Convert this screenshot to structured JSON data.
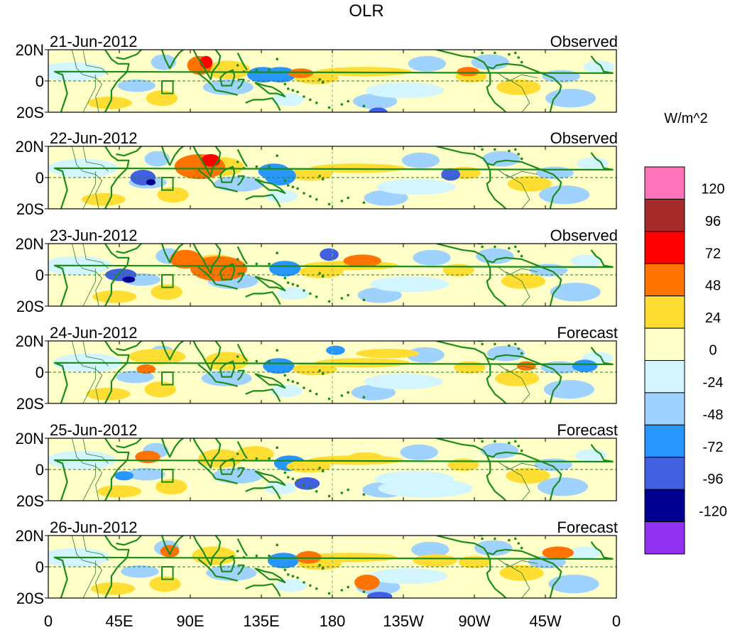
{
  "figure": {
    "title": "OLR",
    "units": "W/m^2"
  },
  "panels": [
    {
      "date": "21-Jun-2012",
      "type": "Observed"
    },
    {
      "date": "22-Jun-2012",
      "type": "Observed"
    },
    {
      "date": "23-Jun-2012",
      "type": "Observed"
    },
    {
      "date": "24-Jun-2012",
      "type": "Forecast"
    },
    {
      "date": "25-Jun-2012",
      "type": "Forecast"
    },
    {
      "date": "26-Jun-2012",
      "type": "Forecast"
    }
  ],
  "lat_ticks": [
    "20N",
    "0",
    "20S"
  ],
  "lon_ticks": [
    "0",
    "45E",
    "90E",
    "135E",
    "180",
    "135W",
    "90W",
    "45W",
    "0"
  ],
  "colorbar": {
    "labels": [
      "120",
      "96",
      "72",
      "48",
      "24",
      "0",
      "-24",
      "-48",
      "-72",
      "-96",
      "-120"
    ],
    "colors": [
      "#ff73b9",
      "#a52a2a",
      "#ff0000",
      "#ff7300",
      "#ffdd33",
      "#ffffc8",
      "#d2f5ff",
      "#a0d2ff",
      "#2896ff",
      "#4060e0",
      "#000090",
      "#9030f0"
    ]
  },
  "map_colors": {
    "coast": "#1a8c1a",
    "border": "#2a7a2a",
    "equator_line": "#2a7a2a",
    "dateline": "#7ab87a"
  }
}
